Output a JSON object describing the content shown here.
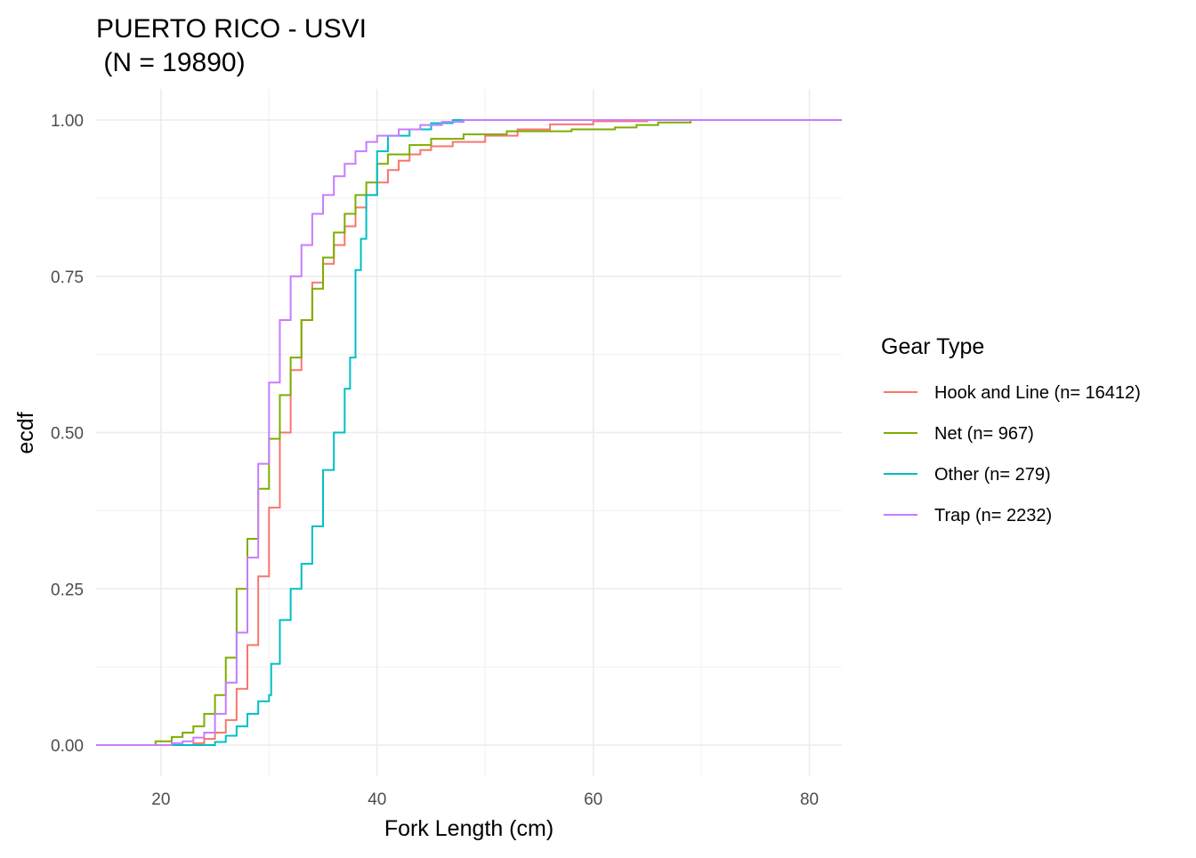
{
  "chart_data": {
    "type": "line",
    "subtype": "step-ecdf",
    "title_line1": "PUERTO RICO - USVI",
    "title_line2": " (N = 19890)",
    "xlabel": "Fork Length (cm)",
    "ylabel": "ecdf",
    "xlim": [
      14,
      83
    ],
    "ylim": [
      0,
      1
    ],
    "x_ticks": [
      20,
      40,
      60,
      80
    ],
    "y_ticks": [
      0,
      0.25,
      0.5,
      0.75,
      1
    ],
    "y_tick_labels": [
      "0.00",
      "0.25",
      "0.50",
      "0.75",
      "1.00"
    ],
    "grid": true,
    "legend": {
      "title": "Gear Type",
      "position": "right"
    },
    "series": [
      {
        "name": "Hook and Line (n= 16412)",
        "color": "#F8766D",
        "points": [
          [
            14,
            0
          ],
          [
            21,
            0
          ],
          [
            23,
            0.003
          ],
          [
            24,
            0.01
          ],
          [
            25,
            0.02
          ],
          [
            26,
            0.04
          ],
          [
            27,
            0.09
          ],
          [
            28,
            0.16
          ],
          [
            29,
            0.27
          ],
          [
            30,
            0.38
          ],
          [
            31,
            0.5
          ],
          [
            32,
            0.6
          ],
          [
            33,
            0.68
          ],
          [
            34,
            0.74
          ],
          [
            35,
            0.77
          ],
          [
            36,
            0.8
          ],
          [
            37,
            0.83
          ],
          [
            38,
            0.86
          ],
          [
            39,
            0.88
          ],
          [
            40,
            0.9
          ],
          [
            41,
            0.92
          ],
          [
            42,
            0.935
          ],
          [
            43,
            0.945
          ],
          [
            44,
            0.952
          ],
          [
            45,
            0.958
          ],
          [
            47,
            0.965
          ],
          [
            50,
            0.975
          ],
          [
            53,
            0.985
          ],
          [
            56,
            0.993
          ],
          [
            60,
            0.998
          ],
          [
            65,
            1
          ],
          [
            83,
            1
          ]
        ]
      },
      {
        "name": "Net (n= 967)",
        "color": "#7CAE00",
        "points": [
          [
            14,
            0
          ],
          [
            19,
            0
          ],
          [
            19.5,
            0.006
          ],
          [
            21,
            0.013
          ],
          [
            22,
            0.02
          ],
          [
            23,
            0.03
          ],
          [
            24,
            0.05
          ],
          [
            25,
            0.08
          ],
          [
            26,
            0.14
          ],
          [
            27,
            0.25
          ],
          [
            28,
            0.33
          ],
          [
            29,
            0.41
          ],
          [
            30,
            0.49
          ],
          [
            31,
            0.56
          ],
          [
            32,
            0.62
          ],
          [
            33,
            0.68
          ],
          [
            34,
            0.73
          ],
          [
            35,
            0.78
          ],
          [
            36,
            0.82
          ],
          [
            37,
            0.85
          ],
          [
            38,
            0.88
          ],
          [
            39,
            0.9
          ],
          [
            40,
            0.93
          ],
          [
            41,
            0.945
          ],
          [
            43,
            0.96
          ],
          [
            45,
            0.97
          ],
          [
            48,
            0.977
          ],
          [
            52,
            0.982
          ],
          [
            58,
            0.985
          ],
          [
            62,
            0.988
          ],
          [
            64,
            0.992
          ],
          [
            66,
            0.996
          ],
          [
            69,
            1
          ],
          [
            83,
            1
          ]
        ]
      },
      {
        "name": "Other (n= 279)",
        "color": "#00BFC4",
        "points": [
          [
            14,
            0
          ],
          [
            24,
            0
          ],
          [
            25,
            0.005
          ],
          [
            26,
            0.015
          ],
          [
            27,
            0.03
          ],
          [
            28,
            0.05
          ],
          [
            29,
            0.07
          ],
          [
            30,
            0.08
          ],
          [
            30.2,
            0.13
          ],
          [
            31,
            0.2
          ],
          [
            32,
            0.25
          ],
          [
            33,
            0.29
          ],
          [
            34,
            0.35
          ],
          [
            35,
            0.44
          ],
          [
            36,
            0.5
          ],
          [
            37,
            0.57
          ],
          [
            37.5,
            0.62
          ],
          [
            38,
            0.76
          ],
          [
            38.5,
            0.81
          ],
          [
            39,
            0.88
          ],
          [
            40,
            0.95
          ],
          [
            41,
            0.975
          ],
          [
            43,
            0.985
          ],
          [
            45,
            0.995
          ],
          [
            47,
            1
          ],
          [
            83,
            1
          ]
        ]
      },
      {
        "name": "Trap (n= 2232)",
        "color": "#C77CFF",
        "points": [
          [
            14,
            0
          ],
          [
            20,
            0
          ],
          [
            21,
            0.003
          ],
          [
            22,
            0.006
          ],
          [
            23,
            0.012
          ],
          [
            24,
            0.02
          ],
          [
            25,
            0.05
          ],
          [
            26,
            0.1
          ],
          [
            27,
            0.18
          ],
          [
            28,
            0.3
          ],
          [
            29,
            0.45
          ],
          [
            30,
            0.58
          ],
          [
            31,
            0.68
          ],
          [
            32,
            0.75
          ],
          [
            33,
            0.8
          ],
          [
            34,
            0.85
          ],
          [
            35,
            0.88
          ],
          [
            36,
            0.91
          ],
          [
            37,
            0.93
          ],
          [
            38,
            0.95
          ],
          [
            39,
            0.965
          ],
          [
            40,
            0.975
          ],
          [
            42,
            0.985
          ],
          [
            44,
            0.992
          ],
          [
            46,
            0.997
          ],
          [
            48,
            1
          ],
          [
            83,
            1
          ]
        ]
      }
    ]
  }
}
